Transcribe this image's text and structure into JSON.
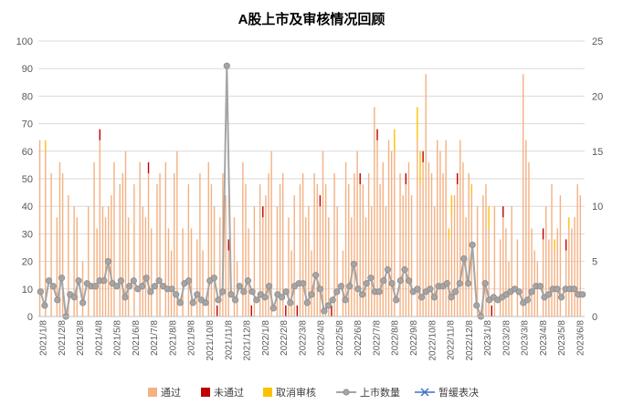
{
  "chart_data": {
    "type": "bar",
    "title": "A股上市及审核情况回顾",
    "left_axis": {
      "ylim": [
        0,
        100
      ],
      "ticks": [
        "0",
        "10",
        "20",
        "30",
        "40",
        "50",
        "60",
        "70",
        "80",
        "90",
        "100"
      ]
    },
    "right_axis": {
      "ylim": [
        0,
        25
      ],
      "ticks": [
        "0",
        "5",
        "10",
        "15",
        "20",
        "25"
      ]
    },
    "x_labels": [
      "2021/1/8",
      "2021/2/8",
      "2021/3/8",
      "2021/4/8",
      "2021/5/8",
      "2021/6/8",
      "2021/7/8",
      "2021/8/8",
      "2021/9/8",
      "2021/10/8",
      "2021/11/8",
      "2021/12/8",
      "2022/1/8",
      "2022/2/8",
      "2022/3/8",
      "2022/4/8",
      "2022/5/8",
      "2022/6/8",
      "2022/7/8",
      "2022/8/8",
      "2022/9/8",
      "2022/10/8",
      "2022/11/8",
      "2022/12/8",
      "2023/1/8",
      "2023/2/8",
      "2023/3/8",
      "2023/4/8",
      "2023/5/8",
      "2023/6/8"
    ],
    "grid": true,
    "legend_position": "bottom",
    "series": [
      {
        "name": "通过",
        "axis": "right",
        "color": "#F4B183",
        "values": [
          16,
          0,
          15,
          0,
          13,
          0,
          9,
          14,
          13,
          0,
          11,
          0,
          10,
          9,
          0,
          5,
          0,
          10,
          0,
          14,
          8,
          16,
          10,
          9,
          10,
          11,
          14,
          0,
          12,
          13,
          15,
          9,
          0,
          12,
          0,
          14,
          10,
          9,
          13,
          8,
          0,
          12,
          13,
          0,
          14,
          8,
          6,
          13,
          15,
          0,
          8,
          0,
          12,
          8,
          0,
          7,
          13,
          6,
          0,
          14,
          12,
          10,
          0,
          9,
          13,
          11,
          6,
          0,
          9,
          5,
          0,
          14,
          12,
          8,
          0,
          10,
          0,
          12,
          9,
          11,
          13,
          15,
          0,
          10,
          12,
          13,
          0,
          9,
          6,
          11,
          0,
          12,
          13,
          9,
          10,
          6,
          13,
          12,
          10,
          15,
          12,
          9,
          0,
          13,
          10,
          0,
          6,
          14,
          12,
          9,
          13,
          15,
          12,
          12,
          9,
          13,
          10,
          19,
          16,
          12,
          14,
          10,
          16,
          15,
          15,
          0,
          13,
          11,
          12,
          14,
          11,
          0,
          16,
          12,
          14,
          22,
          14,
          13,
          10,
          16,
          15,
          13,
          16,
          7,
          9,
          11,
          12,
          16,
          14,
          9,
          13,
          11,
          0,
          10,
          0,
          11,
          12,
          8,
          0,
          10,
          0,
          7,
          9,
          8,
          5,
          10,
          0,
          7,
          0,
          22,
          16,
          14,
          8,
          6,
          5,
          0,
          7,
          10,
          7,
          12,
          6,
          8,
          11,
          0,
          6,
          8,
          8,
          9,
          12,
          11,
          0
        ],
        "failed": [
          0,
          0,
          0,
          0,
          0,
          0,
          0,
          0,
          0,
          0,
          0,
          0,
          0,
          0,
          0,
          0,
          0,
          0,
          0,
          0,
          0,
          1,
          0,
          0,
          0,
          0,
          0,
          0,
          0,
          0,
          0,
          0,
          0,
          0,
          0,
          0,
          0,
          0,
          1,
          0,
          0,
          0,
          0,
          0,
          0,
          0,
          0,
          0,
          0,
          0,
          0,
          0,
          0,
          0,
          0,
          0,
          0,
          0,
          0,
          0,
          0,
          0,
          1,
          0,
          0,
          0,
          1,
          0,
          0,
          0,
          0,
          0,
          0,
          0,
          1,
          0,
          0,
          0,
          1,
          0,
          0,
          0,
          0,
          0,
          0,
          0,
          1,
          0,
          0,
          0,
          1,
          0,
          0,
          0,
          0,
          0,
          0,
          0,
          1,
          0,
          0,
          0,
          1,
          0,
          0,
          0,
          0,
          0,
          0,
          0,
          0,
          0,
          1,
          0,
          0,
          0,
          0,
          0,
          1,
          0,
          0,
          0,
          0,
          0,
          0,
          0,
          0,
          0,
          1,
          0,
          0,
          0,
          0,
          0,
          1,
          0,
          0,
          0,
          0,
          0,
          0,
          0,
          0,
          0,
          0,
          0,
          1,
          0,
          0,
          0,
          0,
          0,
          0,
          0,
          0,
          0,
          0,
          0,
          1,
          0,
          0,
          0,
          1,
          0,
          0,
          0,
          0,
          0,
          0,
          0,
          0,
          0,
          0,
          0,
          0,
          0,
          1,
          0,
          0,
          0,
          0,
          0,
          0,
          0,
          1,
          0,
          0,
          0
        ],
        "withdrawn": [
          0,
          0,
          1,
          0,
          0,
          0,
          0,
          0,
          0,
          0,
          0,
          0,
          0,
          0,
          0,
          0,
          0,
          0,
          0,
          0,
          0,
          0,
          0,
          0,
          0,
          0,
          0,
          0,
          0,
          0,
          0,
          0,
          0,
          0,
          0,
          0,
          0,
          0,
          0,
          0,
          0,
          0,
          0,
          0,
          0,
          0,
          0,
          0,
          0,
          0,
          0,
          0,
          0,
          0,
          0,
          0,
          0,
          0,
          0,
          0,
          0,
          0,
          0,
          0,
          0,
          0,
          0,
          0,
          0,
          0,
          0,
          0,
          0,
          0,
          0,
          0,
          0,
          0,
          0,
          0,
          0,
          0,
          0,
          0,
          0,
          0,
          0,
          0,
          0,
          0,
          0,
          0,
          0,
          0,
          0,
          0,
          0,
          0,
          0,
          0,
          0,
          0,
          0,
          0,
          0,
          0,
          0,
          0,
          0,
          0,
          0,
          0,
          0,
          0,
          0,
          0,
          0,
          0,
          0,
          0,
          0,
          0,
          0,
          0,
          2,
          0,
          0,
          0,
          0,
          0,
          0,
          0,
          3,
          3,
          0,
          0,
          0,
          0,
          0,
          0,
          0,
          0,
          0,
          1,
          2,
          0,
          0,
          0,
          0,
          0,
          0,
          1,
          0,
          0,
          0,
          0,
          0,
          2,
          0,
          0,
          0,
          0,
          0,
          0,
          0,
          0,
          0,
          0,
          0,
          0,
          0,
          0,
          0,
          0,
          0,
          0,
          0,
          0,
          0,
          0,
          1,
          0,
          0,
          0,
          0,
          1,
          0
        ]
      },
      {
        "name": "未通过",
        "axis": "right",
        "color": "#C00000"
      },
      {
        "name": "取消审核",
        "axis": "right",
        "color": "#FFC000"
      },
      {
        "name": "上市数量",
        "axis": "left",
        "type": "line",
        "color": "#A5A5A5",
        "values": [
          9,
          4,
          13,
          11,
          6,
          14,
          0,
          8,
          7,
          13,
          5,
          12,
          11,
          11,
          13,
          13,
          20,
          12,
          11,
          13,
          7,
          11,
          13,
          10,
          11,
          14,
          9,
          11,
          13,
          11,
          10,
          10,
          8,
          5,
          12,
          13,
          5,
          8,
          6,
          5,
          13,
          14,
          6,
          9,
          91,
          8,
          6,
          11,
          9,
          13,
          9,
          6,
          8,
          7,
          11,
          3,
          8,
          7,
          9,
          5,
          11,
          12,
          12,
          5,
          8,
          15,
          10,
          2,
          4,
          6,
          9,
          11,
          6,
          11,
          19,
          10,
          8,
          12,
          14,
          9,
          9,
          13,
          17,
          12,
          6,
          13,
          17,
          13,
          9,
          10,
          7,
          9,
          10,
          7,
          11,
          11,
          12,
          7,
          9,
          12,
          21,
          12,
          26,
          4,
          0,
          12,
          6,
          7,
          6,
          7,
          8,
          9,
          10,
          9,
          5,
          6,
          9,
          11,
          11,
          7,
          8,
          10,
          10,
          7,
          10,
          10,
          10,
          8,
          8
        ]
      },
      {
        "name": "暂缓表决",
        "axis": "right",
        "type": "scatter",
        "color": "#4472C4"
      }
    ]
  }
}
